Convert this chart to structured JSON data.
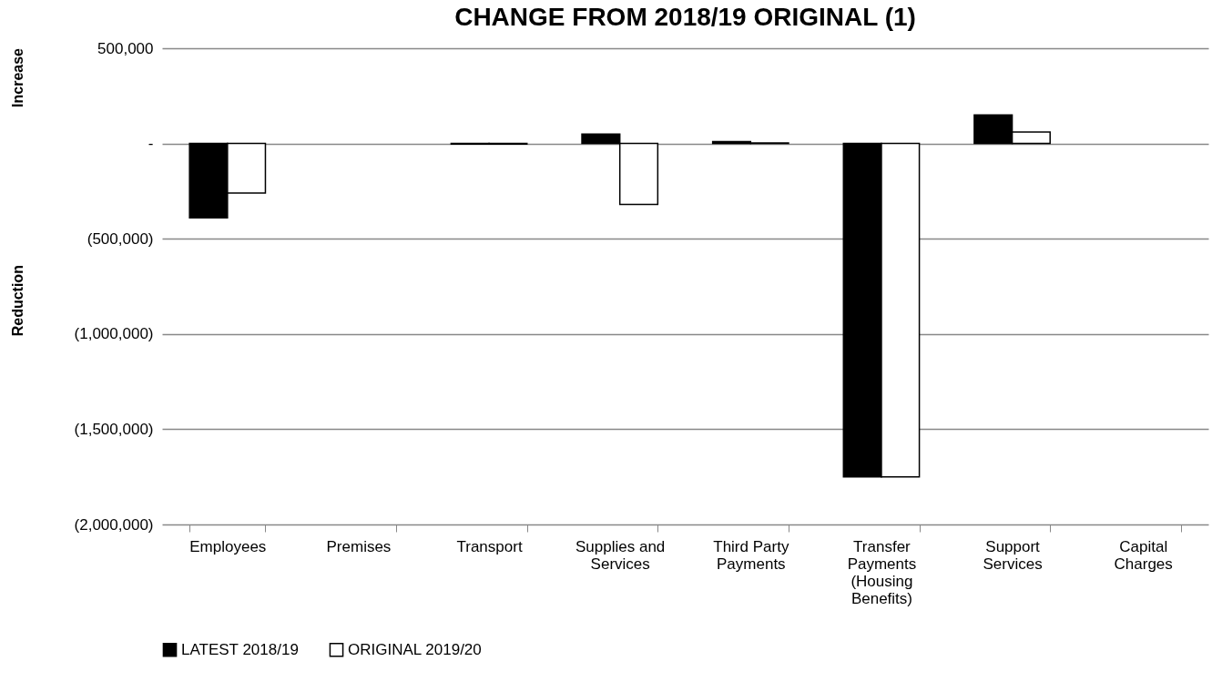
{
  "chart_data": {
    "type": "bar",
    "title": "CHANGE FROM 2018/19 ORIGINAL (1)",
    "ylabel": "Reduction",
    "annotations": [
      "Increase"
    ],
    "categories": [
      "Employees",
      "Premises",
      "Transport",
      "Supplies and Services",
      "Third Party Payments",
      "Transfer Payments (Housing Benefits)",
      "Support Services",
      "Capital Charges"
    ],
    "series": [
      {
        "name": "LATEST 2018/19",
        "color": "#000000",
        "values": [
          -390000,
          null,
          -3000,
          50000,
          10000,
          -1750000,
          150000,
          null
        ]
      },
      {
        "name": "ORIGINAL 2019/20",
        "color": "#ffffff",
        "values": [
          -260000,
          null,
          -3000,
          -320000,
          3000,
          -1750000,
          60000,
          null
        ]
      }
    ],
    "ylim": [
      -2000000,
      500000
    ],
    "yticks": [
      {
        "value": -2000000,
        "label": "(2,000,000)"
      },
      {
        "value": -1500000,
        "label": "(1,500,000)"
      },
      {
        "value": -1000000,
        "label": "(1,000,000)"
      },
      {
        "value": -500000,
        "label": "(500,000)"
      },
      {
        "value": 0,
        "label": "-"
      },
      {
        "value": 500000,
        "label": "500,000"
      }
    ],
    "grid": "y",
    "legend": "bottom"
  }
}
